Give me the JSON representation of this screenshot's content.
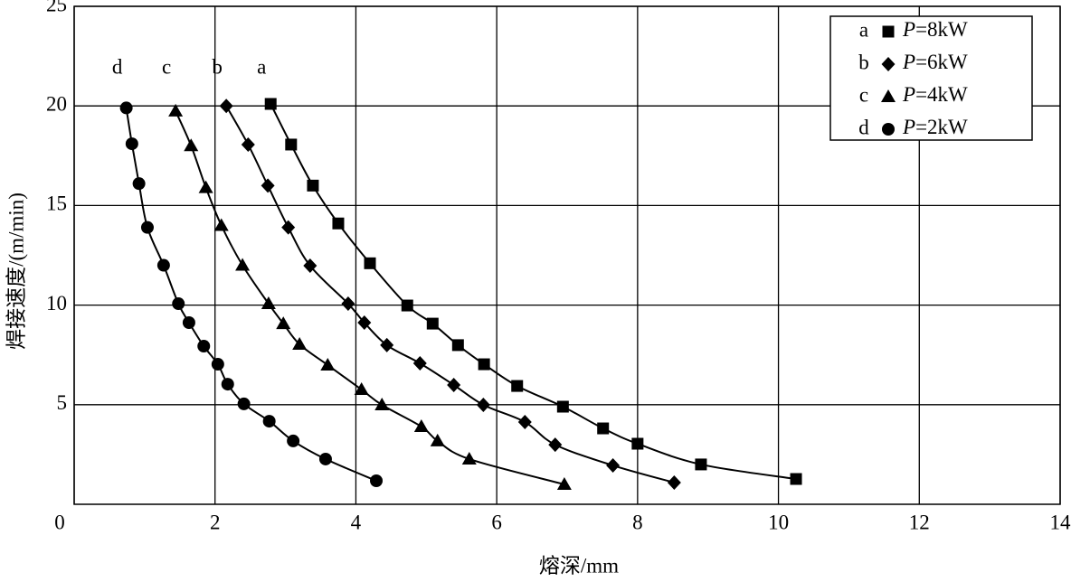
{
  "chart_data": {
    "type": "scatter",
    "x_label": "熔深/mm",
    "y_label": "焊接速度/(m/min)",
    "xlim": [
      0,
      14
    ],
    "xticks": [
      0,
      2,
      4,
      6,
      8,
      10,
      12,
      14
    ],
    "ylim": [
      0,
      25
    ],
    "yticks": [
      5,
      10,
      15,
      20,
      25
    ],
    "grid": true,
    "legend": "upper right",
    "series": [
      {
        "name": "P=8kW",
        "label": "a",
        "marker": "square",
        "color": "#000000",
        "x": [
          2.79,
          3.08,
          3.39,
          3.75,
          4.2,
          4.73,
          5.09,
          5.45,
          5.82,
          6.29,
          6.94,
          7.51,
          8.0,
          8.9,
          10.25
        ],
        "values": [
          20.1,
          18.06,
          16.0,
          14.1,
          12.1,
          9.98,
          9.07,
          7.99,
          7.03,
          5.94,
          4.9,
          3.81,
          3.04,
          2.0,
          1.27
        ]
      },
      {
        "name": "P=6kW",
        "label": "b",
        "marker": "diamond",
        "color": "#000000",
        "x": [
          2.16,
          2.47,
          2.75,
          3.04,
          3.35,
          3.89,
          4.12,
          4.44,
          4.91,
          5.39,
          5.81,
          6.4,
          6.83,
          7.65,
          8.52
        ],
        "values": [
          20.0,
          18.06,
          16.0,
          13.9,
          11.98,
          10.07,
          9.12,
          7.99,
          7.08,
          5.99,
          4.99,
          4.13,
          2.99,
          1.95,
          1.09
        ]
      },
      {
        "name": "P=4kW",
        "label": "c",
        "marker": "triangle",
        "color": "#000000",
        "x": [
          1.44,
          1.66,
          1.87,
          2.09,
          2.39,
          2.76,
          2.97,
          3.2,
          3.6,
          4.08,
          4.37,
          4.93,
          5.16,
          5.61,
          6.96
        ],
        "values": [
          19.74,
          18.0,
          15.9,
          14.0,
          12.0,
          10.07,
          9.07,
          8.03,
          6.99,
          5.76,
          4.99,
          3.9,
          3.18,
          2.27,
          1.0
        ]
      },
      {
        "name": "P=2kW",
        "label": "d",
        "marker": "circle",
        "color": "#000000",
        "x": [
          0.74,
          0.82,
          0.92,
          1.04,
          1.27,
          1.48,
          1.63,
          1.84,
          2.04,
          2.18,
          2.41,
          2.77,
          3.11,
          3.57,
          4.29
        ],
        "values": [
          19.9,
          18.1,
          16.1,
          13.9,
          12.0,
          10.07,
          9.12,
          7.94,
          7.03,
          6.03,
          5.04,
          4.17,
          3.18,
          2.27,
          1.18
        ]
      }
    ]
  }
}
